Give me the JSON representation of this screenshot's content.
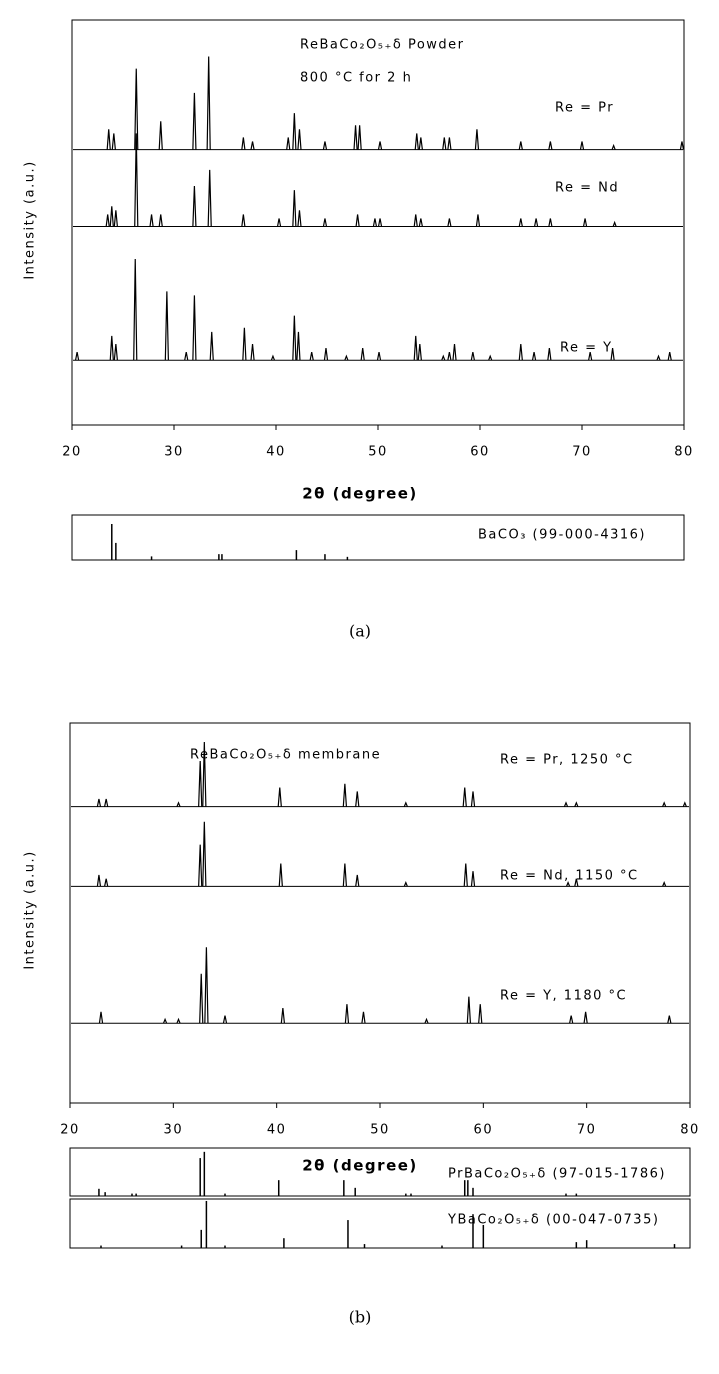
{
  "chart_data": [
    {
      "type": "stem",
      "xlim": [
        20,
        80
      ],
      "ylim": [
        0,
        100
      ],
      "xticks": [
        20,
        30,
        40,
        50,
        60,
        70,
        80
      ],
      "xlabel": "2θ (degree)",
      "ylabel": "Intensity (a.u.)",
      "caption": "(a)",
      "annotations": [
        "ReBaCo₂O₅₊δ Powder",
        "800 °C for 2 h"
      ],
      "series": [
        {
          "name": "Re = Pr",
          "color": "#000000",
          "baseline": 68,
          "x": [
            23.6,
            24.1,
            26.3,
            28.7,
            32.0,
            33.4,
            36.8,
            37.7,
            41.2,
            41.8,
            42.3,
            44.8,
            47.8,
            48.2,
            50.2,
            53.8,
            54.2,
            56.5,
            57.0,
            59.7,
            64.0,
            66.9,
            70.0,
            73.1,
            79.8
          ],
          "values": [
            73,
            72,
            88,
            75,
            82,
            91,
            71,
            70,
            71,
            77,
            73,
            70,
            74,
            74,
            70,
            72,
            71,
            71,
            71,
            73,
            70,
            70,
            70,
            69,
            70
          ]
        },
        {
          "name": "Re = Nd",
          "color": "#000000",
          "baseline": 49,
          "x": [
            23.5,
            23.9,
            24.3,
            26.3,
            27.8,
            28.7,
            32.0,
            33.5,
            36.8,
            40.3,
            41.8,
            42.3,
            44.8,
            48.0,
            49.7,
            50.2,
            53.7,
            54.2,
            57.0,
            59.8,
            64.0,
            65.5,
            66.9,
            70.3,
            73.2
          ],
          "values": [
            52,
            54,
            53,
            72,
            52,
            52,
            59,
            63,
            52,
            51,
            58,
            53,
            51,
            52,
            51,
            51,
            52,
            51,
            51,
            52,
            51,
            51,
            51,
            51,
            50
          ]
        },
        {
          "name": "Re = Y",
          "color": "#000000",
          "baseline": 16,
          "x": [
            20.5,
            23.9,
            24.3,
            26.2,
            29.3,
            31.2,
            32.0,
            33.7,
            36.9,
            37.7,
            39.7,
            41.8,
            42.2,
            43.5,
            44.9,
            46.9,
            48.5,
            50.1,
            53.7,
            54.1,
            56.4,
            57.0,
            57.5,
            59.3,
            61.0,
            64.0,
            65.3,
            66.8,
            70.8,
            73.0,
            77.5,
            78.6
          ],
          "values": [
            18,
            22,
            20,
            41,
            33,
            18,
            32,
            23,
            24,
            20,
            17,
            27,
            23,
            18,
            19,
            17,
            19,
            18,
            22,
            20,
            17,
            18,
            20,
            18,
            17,
            20,
            18,
            19,
            18,
            19,
            17,
            18
          ]
        }
      ]
    },
    {
      "type": "stem",
      "xlim": [
        20,
        80
      ],
      "ylim": [
        0,
        100
      ],
      "series": [
        {
          "name": "BaCO₃ (99-000-4316)",
          "color": "#000000",
          "baseline": 0,
          "x": [
            23.9,
            24.3,
            27.8,
            34.4,
            34.7,
            42.0,
            44.8,
            47.0
          ],
          "values": [
            80,
            38,
            8,
            13,
            13,
            22,
            13,
            7
          ]
        }
      ]
    },
    {
      "type": "stem",
      "xlim": [
        20,
        80
      ],
      "ylim": [
        0,
        100
      ],
      "xticks": [
        20,
        30,
        40,
        50,
        60,
        70,
        80
      ],
      "xlabel": "2θ (degree)",
      "ylabel": "Intensity (a.u.)",
      "caption": "(b)",
      "annotations": [
        "ReBaCo₂O₅₊δ membrane"
      ],
      "series": [
        {
          "name": "Re = Pr, 1250 °C",
          "color": "#000000",
          "baseline": 78,
          "x": [
            22.8,
            23.5,
            30.5,
            32.6,
            33.0,
            40.3,
            46.6,
            47.8,
            52.5,
            58.2,
            59.0,
            68.0,
            69.0,
            77.5,
            79.5
          ],
          "values": [
            80,
            80,
            79,
            90,
            95,
            83,
            84,
            82,
            79,
            83,
            82,
            79,
            79,
            79,
            79
          ]
        },
        {
          "name": "Re = Nd, 1150 °C",
          "color": "#000000",
          "baseline": 57,
          "x": [
            22.8,
            23.5,
            32.6,
            33.0,
            40.4,
            46.6,
            47.8,
            52.5,
            58.3,
            59.0,
            68.2,
            69.0,
            77.5
          ],
          "values": [
            60,
            59,
            68,
            74,
            63,
            63,
            60,
            58,
            63,
            61,
            58,
            59,
            58
          ]
        },
        {
          "name": "Re = Y, 1180 °C",
          "color": "#000000",
          "baseline": 21,
          "x": [
            23.0,
            29.2,
            30.5,
            32.7,
            33.2,
            35.0,
            40.6,
            46.8,
            48.4,
            54.5,
            58.6,
            59.7,
            68.5,
            69.9,
            78.0
          ],
          "values": [
            24,
            22,
            22,
            34,
            41,
            23,
            25,
            26,
            24,
            22,
            28,
            26,
            23,
            24,
            23
          ]
        }
      ]
    },
    {
      "type": "stem",
      "xlim": [
        20,
        80
      ],
      "ylim": [
        0,
        100
      ],
      "series": [
        {
          "name": "PrBaCo₂O₅₊δ (97-015-1786)",
          "color": "#000000",
          "baseline": 0,
          "x": [
            22.8,
            23.4,
            26.0,
            26.4,
            32.6,
            33.0,
            35.0,
            40.2,
            46.5,
            47.6,
            52.5,
            53.0,
            58.2,
            58.5,
            59.0,
            68.0,
            69.0
          ],
          "values": [
            15,
            8,
            5,
            5,
            79,
            92,
            5,
            33,
            33,
            17,
            5,
            5,
            33,
            33,
            17,
            5,
            5
          ]
        }
      ]
    },
    {
      "type": "stem",
      "xlim": [
        20,
        80
      ],
      "ylim": [
        0,
        100
      ],
      "series": [
        {
          "name": "YBaCo₂O₅₊δ (00-047-0735)",
          "color": "#000000",
          "baseline": 0,
          "x": [
            23.0,
            30.8,
            32.7,
            33.2,
            35.0,
            40.7,
            46.9,
            48.5,
            56.0,
            59.0,
            60.0,
            69.0,
            70.0,
            78.5
          ],
          "values": [
            5,
            5,
            37,
            96,
            5,
            20,
            57,
            8,
            5,
            69,
            47,
            12,
            16,
            8
          ]
        }
      ]
    }
  ]
}
